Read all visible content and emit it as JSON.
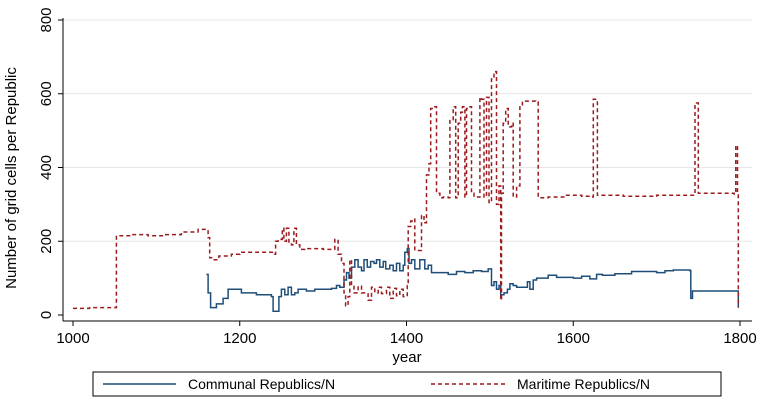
{
  "chart_data": {
    "type": "line",
    "title": "",
    "xlabel": "year",
    "ylabel": "Number of grid cells per Republic",
    "xlim": [
      1000,
      1800
    ],
    "ylim": [
      0,
      800
    ],
    "x_ticks": [
      1000,
      1200,
      1400,
      1600,
      1800
    ],
    "y_ticks": [
      0,
      200,
      400,
      600,
      800
    ],
    "grid": "horizontal",
    "legend_position": "bottom",
    "series": [
      {
        "name": "Communal Republics/N",
        "color": "#1f4e79",
        "style": "solid",
        "points": [
          [
            1160,
            110
          ],
          [
            1162,
            60
          ],
          [
            1165,
            20
          ],
          [
            1172,
            30
          ],
          [
            1180,
            45
          ],
          [
            1186,
            70
          ],
          [
            1198,
            70
          ],
          [
            1202,
            60
          ],
          [
            1218,
            60
          ],
          [
            1220,
            55
          ],
          [
            1235,
            55
          ],
          [
            1238,
            50
          ],
          [
            1240,
            10
          ],
          [
            1245,
            10
          ],
          [
            1247,
            50
          ],
          [
            1250,
            70
          ],
          [
            1254,
            55
          ],
          [
            1258,
            75
          ],
          [
            1262,
            55
          ],
          [
            1266,
            60
          ],
          [
            1270,
            70
          ],
          [
            1280,
            65
          ],
          [
            1290,
            70
          ],
          [
            1300,
            70
          ],
          [
            1310,
            72
          ],
          [
            1316,
            80
          ],
          [
            1320,
            75
          ],
          [
            1325,
            95
          ],
          [
            1328,
            115
          ],
          [
            1331,
            100
          ],
          [
            1334,
            130
          ],
          [
            1338,
            150
          ],
          [
            1342,
            130
          ],
          [
            1346,
            120
          ],
          [
            1349,
            150
          ],
          [
            1353,
            130
          ],
          [
            1357,
            145
          ],
          [
            1361,
            140
          ],
          [
            1364,
            150
          ],
          [
            1368,
            130
          ],
          [
            1372,
            145
          ],
          [
            1375,
            125
          ],
          [
            1380,
            135
          ],
          [
            1384,
            120
          ],
          [
            1388,
            140
          ],
          [
            1392,
            120
          ],
          [
            1396,
            135
          ],
          [
            1398,
            170
          ],
          [
            1401,
            180
          ],
          [
            1403,
            140
          ],
          [
            1406,
            150
          ],
          [
            1410,
            125
          ],
          [
            1416,
            150
          ],
          [
            1422,
            125
          ],
          [
            1426,
            135
          ],
          [
            1430,
            115
          ],
          [
            1440,
            115
          ],
          [
            1450,
            110
          ],
          [
            1460,
            118
          ],
          [
            1470,
            115
          ],
          [
            1480,
            120
          ],
          [
            1490,
            118
          ],
          [
            1498,
            125
          ],
          [
            1502,
            80
          ],
          [
            1505,
            90
          ],
          [
            1508,
            70
          ],
          [
            1511,
            80
          ],
          [
            1513,
            55
          ],
          [
            1517,
            60
          ],
          [
            1521,
            70
          ],
          [
            1524,
            85
          ],
          [
            1528,
            80
          ],
          [
            1532,
            75
          ],
          [
            1540,
            75
          ],
          [
            1545,
            90
          ],
          [
            1548,
            70
          ],
          [
            1552,
            95
          ],
          [
            1556,
            100
          ],
          [
            1570,
            108
          ],
          [
            1580,
            102
          ],
          [
            1600,
            100
          ],
          [
            1610,
            105
          ],
          [
            1620,
            98
          ],
          [
            1628,
            110
          ],
          [
            1635,
            108
          ],
          [
            1650,
            112
          ],
          [
            1670,
            118
          ],
          [
            1690,
            118
          ],
          [
            1700,
            115
          ],
          [
            1710,
            120
          ],
          [
            1720,
            122
          ],
          [
            1730,
            122
          ],
          [
            1740,
            120
          ],
          [
            1741,
            45
          ],
          [
            1743,
            65
          ],
          [
            1760,
            65
          ],
          [
            1780,
            65
          ],
          [
            1796,
            65
          ],
          [
            1798,
            20
          ]
        ]
      },
      {
        "name": "Maritime Republics/N",
        "color": "#9b1b1e",
        "style": "dashed",
        "points": [
          [
            1000,
            18
          ],
          [
            1020,
            20
          ],
          [
            1049,
            20
          ],
          [
            1052,
            215
          ],
          [
            1070,
            218
          ],
          [
            1090,
            215
          ],
          [
            1110,
            218
          ],
          [
            1130,
            225
          ],
          [
            1150,
            232
          ],
          [
            1160,
            232
          ],
          [
            1162,
            210
          ],
          [
            1164,
            155
          ],
          [
            1168,
            150
          ],
          [
            1175,
            160
          ],
          [
            1190,
            165
          ],
          [
            1200,
            170
          ],
          [
            1215,
            170
          ],
          [
            1235,
            170
          ],
          [
            1240,
            165
          ],
          [
            1243,
            200
          ],
          [
            1246,
            205
          ],
          [
            1251,
            235
          ],
          [
            1253,
            200
          ],
          [
            1256,
            235
          ],
          [
            1259,
            195
          ],
          [
            1262,
            190
          ],
          [
            1265,
            235
          ],
          [
            1268,
            190
          ],
          [
            1272,
            178
          ],
          [
            1278,
            180
          ],
          [
            1290,
            180
          ],
          [
            1300,
            178
          ],
          [
            1310,
            178
          ],
          [
            1314,
            205
          ],
          [
            1318,
            165
          ],
          [
            1322,
            140
          ],
          [
            1325,
            60
          ],
          [
            1327,
            25
          ],
          [
            1330,
            50
          ],
          [
            1332,
            150
          ],
          [
            1334,
            80
          ],
          [
            1337,
            60
          ],
          [
            1342,
            78
          ],
          [
            1346,
            60
          ],
          [
            1350,
            60
          ],
          [
            1354,
            40
          ],
          [
            1358,
            75
          ],
          [
            1362,
            60
          ],
          [
            1366,
            75
          ],
          [
            1370,
            58
          ],
          [
            1376,
            75
          ],
          [
            1380,
            45
          ],
          [
            1384,
            72
          ],
          [
            1388,
            52
          ],
          [
            1392,
            70
          ],
          [
            1396,
            50
          ],
          [
            1401,
            80
          ],
          [
            1402,
            240
          ],
          [
            1405,
            255
          ],
          [
            1408,
            260
          ],
          [
            1410,
            175
          ],
          [
            1414,
            175
          ],
          [
            1418,
            270
          ],
          [
            1421,
            250
          ],
          [
            1424,
            380
          ],
          [
            1427,
            410
          ],
          [
            1429,
            560
          ],
          [
            1433,
            565
          ],
          [
            1436,
            330
          ],
          [
            1440,
            318
          ],
          [
            1444,
            320
          ],
          [
            1450,
            318
          ],
          [
            1452,
            530
          ],
          [
            1456,
            565
          ],
          [
            1459,
            318
          ],
          [
            1462,
            520
          ],
          [
            1465,
            550
          ],
          [
            1467,
            565
          ],
          [
            1470,
            320
          ],
          [
            1472,
            560
          ],
          [
            1476,
            565
          ],
          [
            1478,
            330
          ],
          [
            1481,
            320
          ],
          [
            1486,
            320
          ],
          [
            1488,
            590
          ],
          [
            1490,
            585
          ],
          [
            1493,
            320
          ],
          [
            1496,
            590
          ],
          [
            1499,
            305
          ],
          [
            1502,
            640
          ],
          [
            1505,
            660
          ],
          [
            1508,
            300
          ],
          [
            1511,
            350
          ],
          [
            1513,
            40
          ],
          [
            1514,
            330
          ],
          [
            1516,
            520
          ],
          [
            1519,
            560
          ],
          [
            1522,
            510
          ],
          [
            1526,
            520
          ],
          [
            1528,
            320
          ],
          [
            1532,
            350
          ],
          [
            1534,
            350
          ],
          [
            1536,
            570
          ],
          [
            1539,
            580
          ],
          [
            1545,
            580
          ],
          [
            1555,
            578
          ],
          [
            1558,
            318
          ],
          [
            1570,
            320
          ],
          [
            1590,
            325
          ],
          [
            1610,
            322
          ],
          [
            1622,
            320
          ],
          [
            1624,
            585
          ],
          [
            1626,
            585
          ],
          [
            1629,
            325
          ],
          [
            1640,
            325
          ],
          [
            1660,
            322
          ],
          [
            1680,
            322
          ],
          [
            1700,
            325
          ],
          [
            1720,
            325
          ],
          [
            1735,
            325
          ],
          [
            1744,
            325
          ],
          [
            1746,
            570
          ],
          [
            1748,
            575
          ],
          [
            1750,
            330
          ],
          [
            1760,
            330
          ],
          [
            1780,
            330
          ],
          [
            1790,
            330
          ],
          [
            1793,
            328
          ],
          [
            1795,
            460
          ],
          [
            1797,
            330
          ],
          [
            1798,
            20
          ]
        ]
      }
    ]
  }
}
